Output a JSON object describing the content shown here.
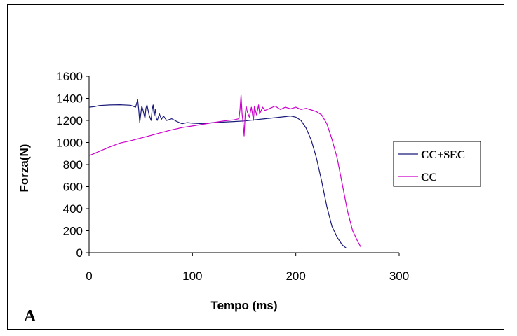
{
  "panel_label": "A",
  "chart_data": {
    "type": "line",
    "title": "",
    "xlabel": "Tempo (ms)",
    "ylabel": "Forza(N)",
    "xlim": [
      0,
      300
    ],
    "ylim": [
      0,
      1600
    ],
    "x_ticks": [
      0,
      100,
      200,
      300
    ],
    "y_ticks": [
      0,
      200,
      400,
      600,
      800,
      1000,
      1200,
      1400,
      1600
    ],
    "grid": false,
    "legend_position": "right",
    "series": [
      {
        "name": "CC+SEC",
        "color": "#1a1a7a",
        "x": [
          0,
          5,
          10,
          20,
          30,
          40,
          45,
          47,
          48,
          49,
          50,
          51,
          52,
          54,
          55,
          56,
          58,
          60,
          61,
          62,
          63,
          64,
          65,
          66,
          68,
          70,
          72,
          75,
          80,
          85,
          90,
          95,
          100,
          110,
          120,
          130,
          140,
          150,
          160,
          170,
          180,
          190,
          195,
          200,
          205,
          210,
          215,
          220,
          225,
          230,
          235,
          240,
          245,
          249
        ],
        "y": [
          1320,
          1325,
          1335,
          1340,
          1342,
          1338,
          1320,
          1390,
          1300,
          1180,
          1260,
          1330,
          1300,
          1220,
          1310,
          1340,
          1250,
          1200,
          1300,
          1340,
          1240,
          1300,
          1220,
          1200,
          1260,
          1210,
          1240,
          1200,
          1215,
          1190,
          1170,
          1180,
          1175,
          1170,
          1180,
          1185,
          1190,
          1195,
          1205,
          1215,
          1225,
          1235,
          1240,
          1230,
          1200,
          1130,
          1020,
          860,
          650,
          420,
          240,
          140,
          70,
          40
        ]
      },
      {
        "name": "CC",
        "color": "#cc00cc",
        "x": [
          0,
          10,
          20,
          30,
          40,
          50,
          60,
          70,
          80,
          90,
          100,
          110,
          120,
          130,
          140,
          145,
          146,
          147,
          148,
          149,
          150,
          151,
          152,
          153,
          155,
          157,
          159,
          160,
          162,
          164,
          165,
          168,
          170,
          175,
          180,
          185,
          190,
          195,
          200,
          205,
          210,
          215,
          220,
          225,
          230,
          235,
          240,
          245,
          250,
          255,
          260,
          263
        ],
        "y": [
          880,
          920,
          960,
          995,
          1015,
          1040,
          1065,
          1090,
          1115,
          1135,
          1150,
          1165,
          1180,
          1195,
          1205,
          1215,
          1300,
          1430,
          1260,
          1180,
          1060,
          1250,
          1330,
          1280,
          1230,
          1320,
          1200,
          1330,
          1250,
          1340,
          1260,
          1320,
          1290,
          1310,
          1330,
          1300,
          1320,
          1305,
          1320,
          1300,
          1310,
          1295,
          1280,
          1250,
          1170,
          1030,
          860,
          620,
          380,
          200,
          100,
          50
        ]
      }
    ]
  }
}
